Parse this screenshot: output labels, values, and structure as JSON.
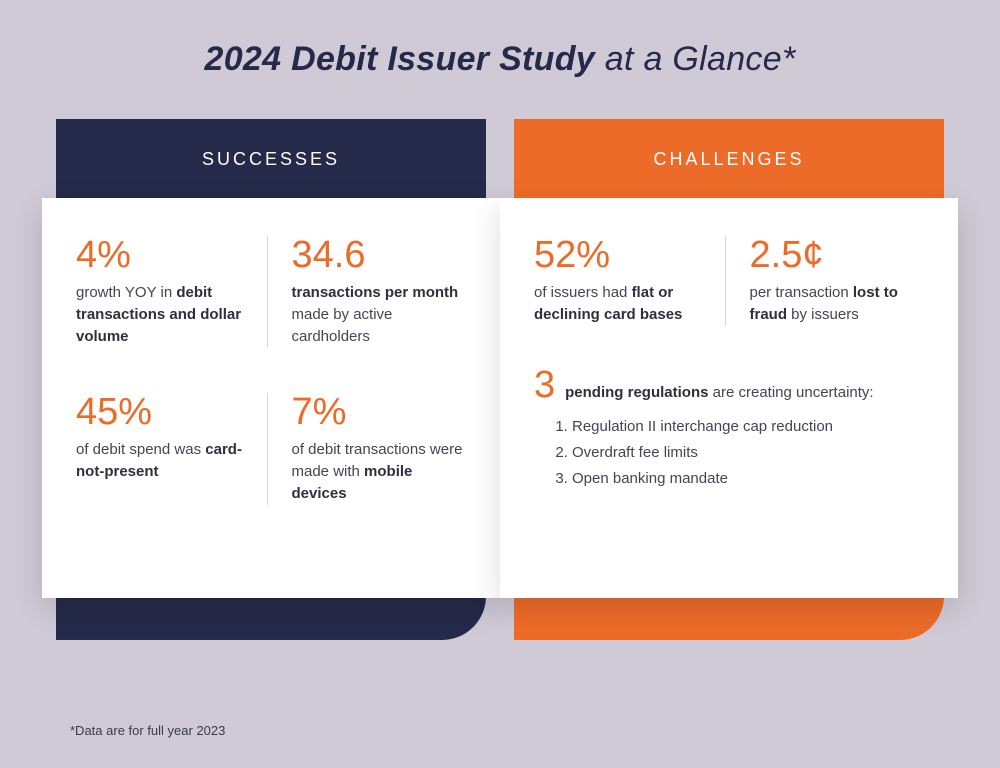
{
  "title_bold": "2024 Debit Issuer Study",
  "title_light": " at a Glance*",
  "colors": {
    "background": "#cfcad6",
    "accent_orange": "#ec6b29",
    "dark_navy": "#252a4a",
    "card_bg": "#ffffff",
    "text": "#444456",
    "divider": "#d9d4e0"
  },
  "successes": {
    "header": "SUCCESSES",
    "stats": [
      {
        "value": "4%",
        "pre": "growth YOY in ",
        "bold": "debit transactions and dollar volume",
        "post": ""
      },
      {
        "value": "34.6",
        "pre": "",
        "bold": "transactions per month",
        "post": " made by active cardholders"
      },
      {
        "value": "45%",
        "pre": "of debit spend was ",
        "bold": "card-not-present",
        "post": ""
      },
      {
        "value": "7%",
        "pre": "of debit transactions were made with ",
        "bold": "mobile devices",
        "post": ""
      }
    ]
  },
  "challenges": {
    "header": "CHALLENGES",
    "stats": [
      {
        "value": "52%",
        "pre": "of issuers had ",
        "bold": "flat or declining card bases",
        "post": ""
      },
      {
        "value": "2.5¢",
        "pre": "per transaction ",
        "bold": "lost to fraud",
        "post": " by issuers"
      }
    ],
    "regulations": {
      "count": "3",
      "lead_bold": "pending regulations",
      "lead_post": " are creating uncertainty:",
      "items": [
        "Regulation II interchange cap reduction",
        "Overdraft fee limits",
        "Open banking mandate"
      ]
    }
  },
  "footnote": "*Data are for full year 2023"
}
